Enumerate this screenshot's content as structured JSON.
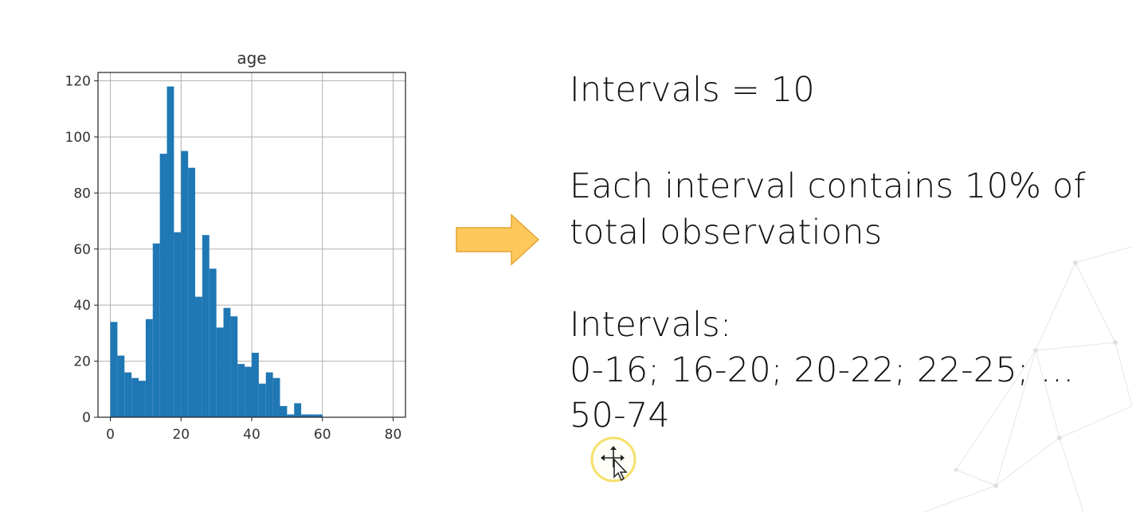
{
  "slide": {
    "line_intervals": "Intervals = 10",
    "line_each_1": "Each interval contains 10% of",
    "line_each_2": "total observations",
    "line_intervals_label": "Intervals:",
    "line_ranges_1": "0-16; 16-20; 20-22; 22-25; …",
    "line_ranges_2": "50-74"
  },
  "colors": {
    "bar": "#1f77b4",
    "arrow_fill": "#ffc85a",
    "arrow_stroke": "#e3a334",
    "cursor_ring": "#f5e06a",
    "grid": "#b0b0b0"
  },
  "icons": [
    "right-arrow-icon",
    "move-cursor-icon"
  ],
  "chart_data": {
    "type": "bar",
    "title": "age",
    "xlabel": "",
    "ylabel": "",
    "xlim": [
      -3.5,
      83.5
    ],
    "ylim": [
      0,
      123
    ],
    "xticks": [
      0,
      20,
      40,
      60,
      80
    ],
    "yticks": [
      0,
      20,
      40,
      60,
      80,
      100,
      120
    ],
    "grid": true,
    "bin_width": 2,
    "bin_start": 0,
    "values": [
      34,
      22,
      16,
      14,
      13,
      35,
      62,
      94,
      118,
      66,
      95,
      89,
      43,
      65,
      53,
      32,
      39,
      36,
      19,
      18,
      23,
      12,
      16,
      14,
      4,
      1,
      5,
      1,
      1,
      1
    ]
  }
}
